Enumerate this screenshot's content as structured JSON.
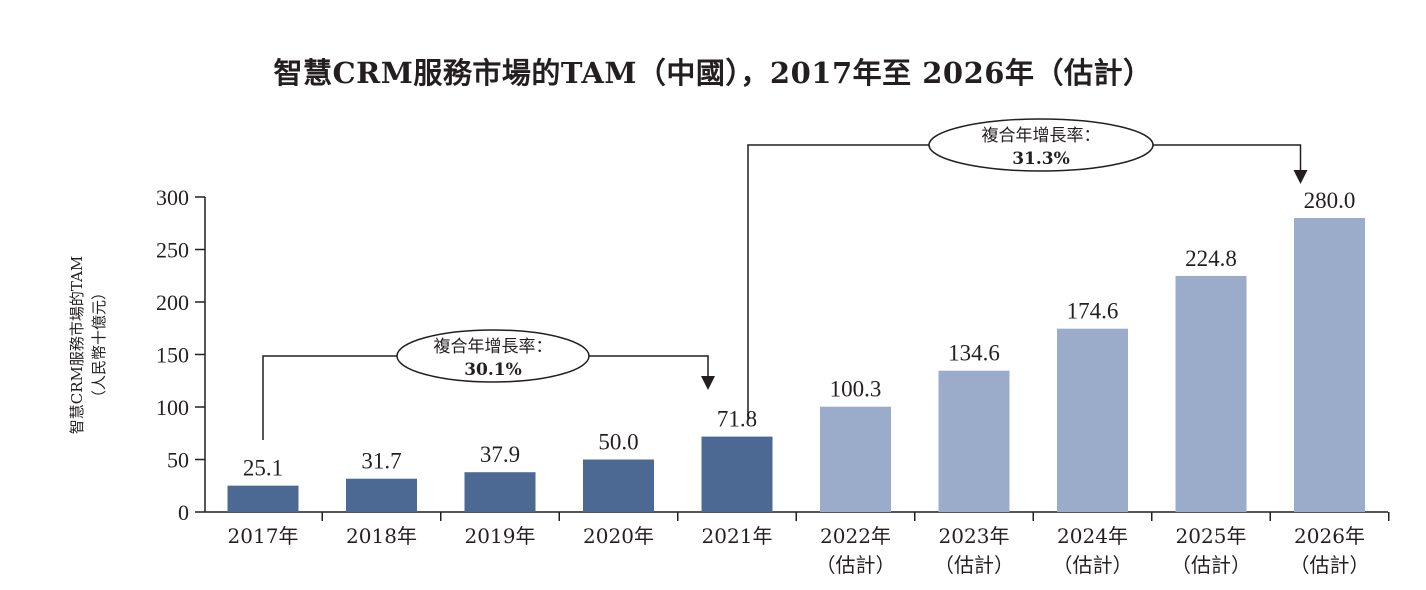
{
  "chart_data": {
    "type": "bar",
    "title": "智慧CRM服務市場的TAM（中國），2017年至 2026年（估計）",
    "ylabel_line1": "智慧CRM服務市場的TAM",
    "ylabel_line2": "（人民幣十億元）",
    "ylim": [
      0,
      300
    ],
    "yticks": [
      0,
      50,
      100,
      150,
      200,
      250,
      300
    ],
    "grid": false,
    "categories": [
      {
        "year": "2017年",
        "note": ""
      },
      {
        "year": "2018年",
        "note": ""
      },
      {
        "year": "2019年",
        "note": ""
      },
      {
        "year": "2020年",
        "note": ""
      },
      {
        "year": "2021年",
        "note": ""
      },
      {
        "year": "2022年",
        "note": "（估計）"
      },
      {
        "year": "2023年",
        "note": "（估計）"
      },
      {
        "year": "2024年",
        "note": "（估計）"
      },
      {
        "year": "2025年",
        "note": "（估計）"
      },
      {
        "year": "2026年",
        "note": "（估計）"
      }
    ],
    "values": [
      25.1,
      31.7,
      37.9,
      50.0,
      71.8,
      100.3,
      134.6,
      174.6,
      224.8,
      280.0
    ],
    "value_labels": [
      "25.1",
      "31.7",
      "37.9",
      "50.0",
      "71.8",
      "100.3",
      "134.6",
      "174.6",
      "224.8",
      "280.0"
    ],
    "colors": {
      "historical": "#4b6993",
      "estimated": "#9aacc9",
      "axis": "#231f20"
    },
    "cagr": [
      {
        "label": "複合年增長率：",
        "value": "30.1%",
        "from_index": 0,
        "to_index": 4
      },
      {
        "label": "複合年增長率：",
        "value": "31.3%",
        "from_index": 4,
        "to_index": 9
      }
    ]
  }
}
